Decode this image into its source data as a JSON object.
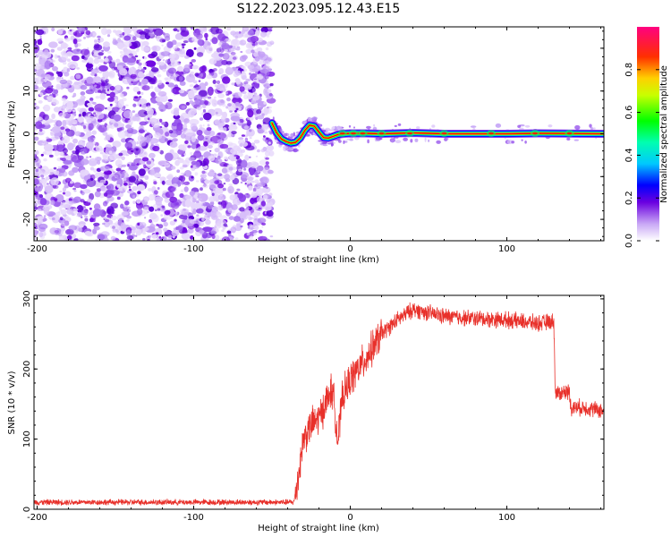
{
  "title": "S122.2023.095.12.43.E15",
  "chart_data": [
    {
      "type": "heatmap",
      "xlabel": "Height of straight line (km)",
      "ylabel": "Frequency (Hz)",
      "xlim": [
        -202,
        162
      ],
      "ylim": [
        -25,
        25
      ],
      "xticks": [
        -200,
        -100,
        0,
        100
      ],
      "yticks": [
        -20,
        -10,
        0,
        10,
        20
      ],
      "noise_region_x": [
        -202,
        -50
      ],
      "signal_trace": {
        "x": [
          -50,
          -47,
          -44,
          -41,
          -38,
          -35,
          -32,
          -29,
          -26,
          -23,
          -20,
          -17,
          -14,
          -11,
          -8,
          -5,
          0,
          10,
          20,
          40,
          60,
          100,
          120,
          162
        ],
        "y": [
          2.5,
          0.2,
          -1.2,
          -1.8,
          -2.2,
          -2.0,
          -1.0,
          0.8,
          2.0,
          1.8,
          0.4,
          -0.9,
          -1.0,
          -0.6,
          -0.2,
          0.0,
          0.1,
          0.1,
          0.0,
          0.2,
          0.0,
          0.0,
          0.1,
          0.0
        ]
      },
      "colorbar": {
        "label": "Normalized spectral amplitude",
        "range": [
          0,
          1
        ],
        "ticks": [
          "0.0",
          "0.2",
          "0.4",
          "0.6",
          "0.8"
        ],
        "colormap": "gist_rainbow_r"
      },
      "grid": false
    },
    {
      "type": "line",
      "xlabel": "Height of straight line (km)",
      "ylabel": "SNR (10 * v/v)",
      "xlim": [
        -202,
        162
      ],
      "ylim": [
        0,
        305
      ],
      "xticks": [
        -200,
        -100,
        0,
        100
      ],
      "yticks": [
        0,
        100,
        200,
        300
      ],
      "line_color": "#e8302a",
      "series": [
        {
          "x": [
            -202,
            -150,
            -100,
            -50,
            -36,
            -33,
            -30,
            -25,
            -20,
            -15,
            -12,
            -10,
            -8,
            -5,
            0,
            10,
            20,
            30,
            40,
            60,
            80,
            100,
            120,
            130,
            131,
            140,
            141,
            150,
            162
          ],
          "values": [
            10,
            10,
            10,
            10,
            10,
            50,
            100,
            120,
            130,
            155,
            170,
            150,
            95,
            160,
            185,
            215,
            250,
            270,
            285,
            275,
            272,
            270,
            265,
            268,
            165,
            168,
            145,
            145,
            140
          ]
        }
      ],
      "grid": false
    }
  ]
}
